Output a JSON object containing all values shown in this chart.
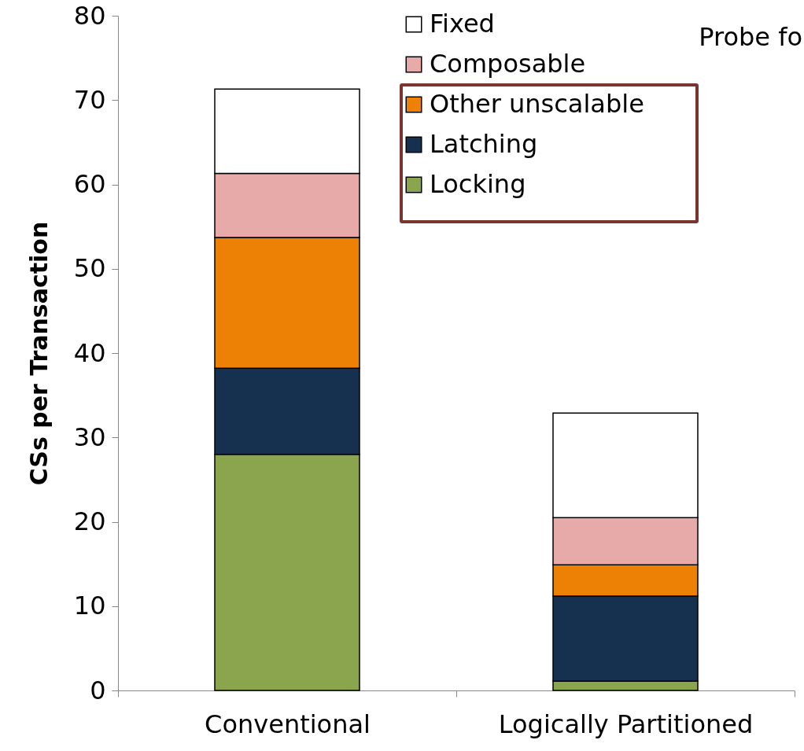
{
  "chart_data": {
    "type": "bar",
    "stacked": true,
    "ylabel": "CSs per Transaction",
    "categories": [
      "Conventional",
      "Logically Partitioned"
    ],
    "series": [
      {
        "name": "Locking",
        "color": "#8ba44e",
        "values": [
          28,
          1.1
        ]
      },
      {
        "name": "Latching",
        "color": "#16314f",
        "values": [
          10.2,
          10.1
        ]
      },
      {
        "name": "Other unscalable",
        "color": "#ec8106",
        "values": [
          15.5,
          3.7
        ]
      },
      {
        "name": "Composable",
        "color": "#e8aaa8",
        "values": [
          7.6,
          5.6
        ]
      },
      {
        "name": "Fixed",
        "color": "#ffffff",
        "values": [
          10,
          12.4
        ]
      }
    ],
    "ylim": [
      0,
      80
    ],
    "yticks": [
      0,
      10,
      20,
      30,
      40,
      50,
      60,
      70,
      80
    ],
    "grid": false,
    "legend": "top right",
    "annotations": [
      "Probe fo"
    ]
  }
}
